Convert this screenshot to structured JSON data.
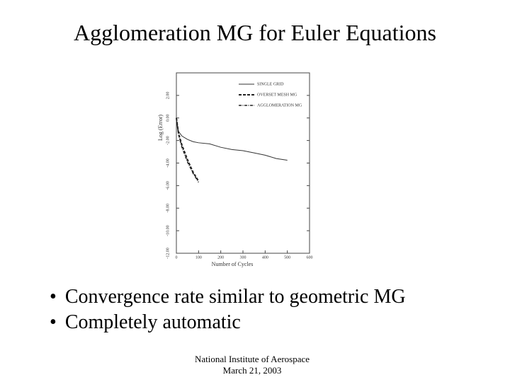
{
  "slide": {
    "title": "Agglomeration MG for Euler Equations",
    "bullets": [
      "Convergence rate similar to geometric MG",
      "Completely automatic"
    ],
    "footer": [
      "National Institute of Aerospace",
      "March 21, 2003"
    ]
  },
  "chart_data": {
    "type": "line",
    "x_label": "Number of Cycles",
    "y_label": "Log (Error)",
    "xlim": [
      0,
      600
    ],
    "xticks": [
      0,
      100,
      200,
      300,
      400,
      500,
      600
    ],
    "ylim": [
      -12,
      4
    ],
    "yticks": [
      {
        "value": 2,
        "label": "2.00"
      },
      {
        "value": 0,
        "label": "0.00"
      },
      {
        "value": -2,
        "label": "-2.00"
      },
      {
        "value": -4,
        "label": "-4.00"
      },
      {
        "value": -6,
        "label": "-6.00"
      },
      {
        "value": -8,
        "label": "-8.00"
      },
      {
        "value": -10,
        "label": "-10.00"
      },
      {
        "value": -12,
        "label": "-12.00"
      }
    ],
    "legend": "upper right",
    "series": [
      {
        "name": "SINGLE GRID",
        "color": "#333333",
        "style": "solid",
        "x": [
          0,
          5,
          10,
          25,
          50,
          75,
          100,
          150,
          200,
          250,
          300,
          350,
          400,
          450,
          500
        ],
        "values": [
          0,
          -0.8,
          -1.2,
          -1.6,
          -1.9,
          -2.1,
          -2.2,
          -2.3,
          -2.6,
          -2.8,
          -2.9,
          -3.1,
          -3.3,
          -3.6,
          -3.75
        ]
      },
      {
        "name": "OVERSET MESH MG",
        "color": "#222222",
        "style": "dashed",
        "x": [
          0,
          10,
          25,
          50,
          75,
          100
        ],
        "values": [
          0,
          -1.4,
          -2.4,
          -3.7,
          -4.8,
          -5.6
        ]
      },
      {
        "name": "AGGLOMERATION MG",
        "color": "#222222",
        "style": "dashdot",
        "x": [
          0,
          10,
          25,
          50,
          75,
          100
        ],
        "values": [
          0,
          -1.5,
          -2.6,
          -3.9,
          -4.9,
          -5.7
        ]
      }
    ]
  }
}
